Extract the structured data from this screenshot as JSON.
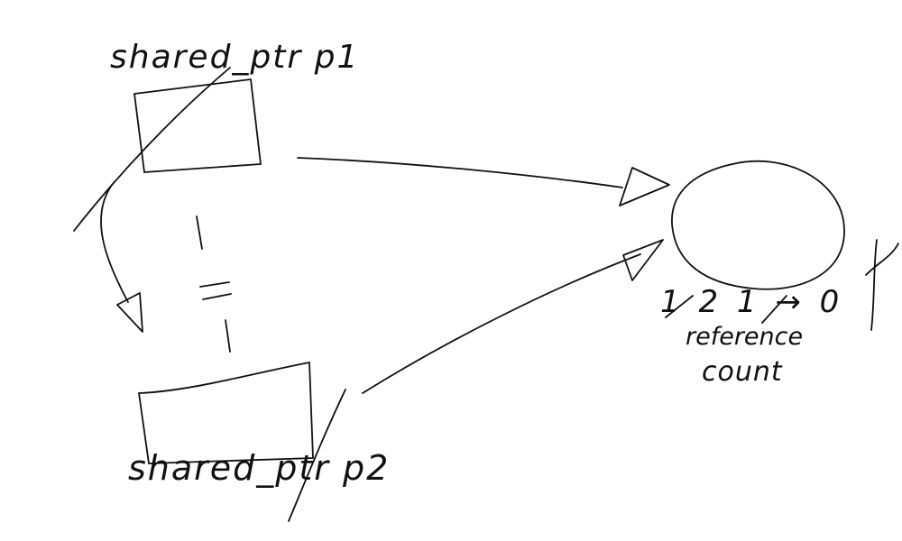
{
  "pointer_p1": {
    "label": "shared_ptr p1"
  },
  "pointer_p2": {
    "label": "shared_ptr p2"
  },
  "control_block": {
    "count_sequence": "1 2 1 → 0",
    "caption_line1": "reference",
    "caption_line2": "count"
  },
  "colors": {
    "ink": "#111111",
    "background": "#ffffff"
  }
}
